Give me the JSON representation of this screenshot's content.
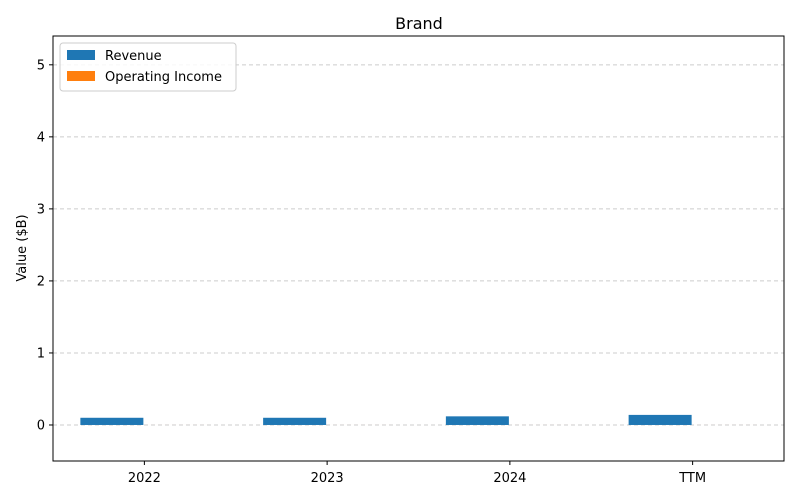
{
  "chart_data": {
    "type": "bar",
    "title": "Brand",
    "xlabel": "",
    "ylabel": "Value ($B)",
    "categories": [
      "2022",
      "2023",
      "2024",
      "TTM"
    ],
    "series": [
      {
        "name": "Revenue",
        "values": [
          0.1,
          0.1,
          0.12,
          0.14
        ],
        "color": "#1f77b4"
      },
      {
        "name": "Operating Income",
        "values": [
          0,
          0,
          0,
          0
        ],
        "color": "#ff7f0e"
      }
    ],
    "ylim": [
      -0.5,
      5.4
    ],
    "yticks": [
      0,
      1,
      2,
      3,
      4,
      5
    ],
    "grid": "horizontal dashed",
    "legend_position": "top-left"
  }
}
